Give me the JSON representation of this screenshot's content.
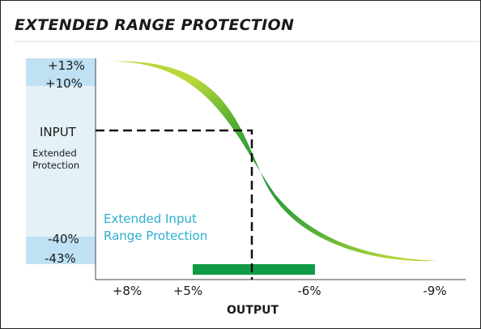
{
  "title": "EXTENDED RANGE PROTECTION",
  "y_labels": {
    "top": "+13%",
    "upper": "+10%",
    "input": "INPUT",
    "extended_line1": "Extended",
    "extended_line2": "Protection",
    "lower": "-40%",
    "bottom": "-43%"
  },
  "annotation": {
    "line1": "Extended Input",
    "line2": "Range Protection"
  },
  "x_ticks": [
    "+8%",
    "+5%",
    "-6%",
    "-9%"
  ],
  "x_label": "OUTPUT",
  "colors": {
    "band": "#bfe1f3",
    "band_light": "#e4f1f7",
    "curve_light": "#b9d83a",
    "curve_dark": "#0d8f3c",
    "bar": "#119a45",
    "annotation": "#2aaed1"
  }
}
